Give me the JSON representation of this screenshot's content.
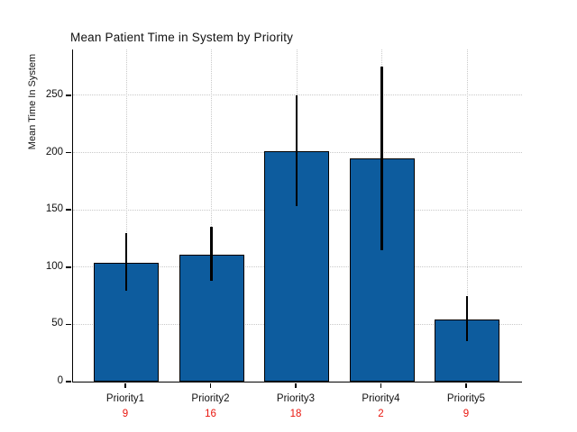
{
  "chart": {
    "title": "Mean Patient Time in System by Priority",
    "ylabel": "Mean Time In System",
    "colors": {
      "bar_fill": "#0d5c9e",
      "bar_edge": "#000000",
      "error_bar": "#000000",
      "grid": "#c9c9c9",
      "axis": "#000000",
      "text": "#111111",
      "count_label": "#e9150d"
    }
  },
  "chart_data": {
    "type": "bar",
    "title": "Mean Patient Time in System by Priority",
    "xlabel": "",
    "ylabel": "Mean Time In System",
    "categories": [
      "Priority1",
      "Priority2",
      "Priority3",
      "Priority4",
      "Priority5"
    ],
    "values": [
      104,
      111,
      201,
      195,
      54
    ],
    "error_low": [
      79,
      88,
      153,
      115,
      35
    ],
    "error_high": [
      130,
      135,
      250,
      275,
      75
    ],
    "counts": [
      9,
      16,
      18,
      2,
      9
    ],
    "yticks": [
      0,
      50,
      100,
      150,
      200,
      250
    ],
    "ylim": [
      0,
      290
    ],
    "grid": "dotted, horizontal at y-ticks and vertical at bar centers",
    "legend": "none"
  }
}
